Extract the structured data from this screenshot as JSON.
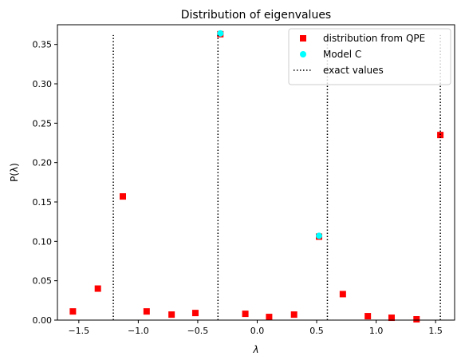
{
  "chart_data": {
    "type": "scatter",
    "title": "Distribution of eigenvalues",
    "xlabel": "λ",
    "ylabel": "P(λ)",
    "xlim": [
      -1.68,
      1.66
    ],
    "ylim": [
      0.0,
      0.375
    ],
    "x_ticks": [
      -1.5,
      -1.0,
      -0.5,
      0.0,
      0.5,
      1.0,
      1.5
    ],
    "x_tick_labels": [
      "−1.5",
      "−1.0",
      "−0.5",
      "0.0",
      "0.5",
      "1.0",
      "1.5"
    ],
    "y_ticks": [
      0.0,
      0.05,
      0.1,
      0.15,
      0.2,
      0.25,
      0.3,
      0.35
    ],
    "y_tick_labels": [
      "0.00",
      "0.05",
      "0.10",
      "0.15",
      "0.20",
      "0.25",
      "0.30",
      "0.35"
    ],
    "legend_position": "top-right",
    "grid": false,
    "series": [
      {
        "name": "distribution from QPE",
        "kind": "marker",
        "marker": "square",
        "color": "#ff0000",
        "x": [
          -1.55,
          -1.34,
          -1.13,
          -0.93,
          -0.72,
          -0.52,
          -0.31,
          -0.1,
          0.1,
          0.31,
          0.52,
          0.72,
          0.93,
          1.13,
          1.34,
          1.54
        ],
        "y": [
          0.011,
          0.04,
          0.157,
          0.011,
          0.007,
          0.009,
          0.363,
          0.008,
          0.004,
          0.007,
          0.106,
          0.033,
          0.005,
          0.003,
          0.001,
          0.235
        ]
      },
      {
        "name": "Model C",
        "kind": "marker",
        "marker": "circle",
        "color": "#00ffff",
        "x": [
          -0.31,
          0.52
        ],
        "y": [
          0.364,
          0.107
        ]
      },
      {
        "name": "exact values",
        "kind": "vline",
        "style": "dotted",
        "color": "#000000",
        "x": [
          -1.21,
          -0.33,
          0.59,
          1.54
        ],
        "ymax": 0.362
      }
    ]
  }
}
